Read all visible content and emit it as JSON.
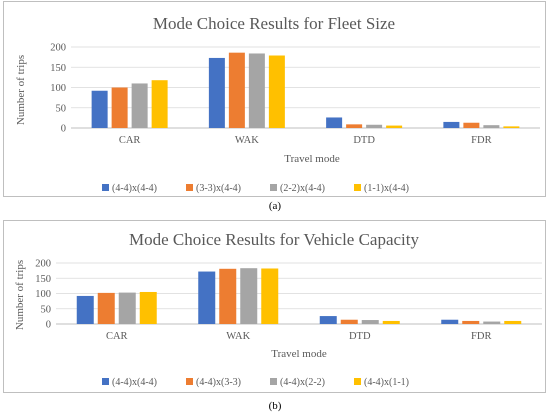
{
  "chart_data": [
    {
      "type": "bar",
      "title": "Mode Choice Results for Fleet Size",
      "xlabel": "Travel mode",
      "ylabel": "Number of trips",
      "categories": [
        "CAR",
        "WAK",
        "DTD",
        "FDR"
      ],
      "yticks": [
        "0",
        "50",
        "100",
        "150",
        "200"
      ],
      "ylim": [
        0,
        200
      ],
      "legend_position": "bottom",
      "series": [
        {
          "name": "(4-4)x(4-4)",
          "color": "#4472c4",
          "values": [
            92,
            173,
            26,
            15
          ]
        },
        {
          "name": "(3-3)x(4-4)",
          "color": "#ed7d31",
          "values": [
            100,
            186,
            9,
            13
          ]
        },
        {
          "name": "(2-2)x(4-4)",
          "color": "#a5a5a5",
          "values": [
            110,
            184,
            8,
            7
          ]
        },
        {
          "name": "(1-1)x(4-4)",
          "color": "#ffc000",
          "values": [
            118,
            179,
            6,
            4
          ]
        }
      ],
      "caption": "(a)"
    },
    {
      "type": "bar",
      "title": "Mode Choice Results for Vehicle Capacity",
      "xlabel": "Travel mode",
      "ylabel": "Number of trips",
      "categories": [
        "CAR",
        "WAK",
        "DTD",
        "FDR"
      ],
      "yticks": [
        "0",
        "50",
        "100",
        "150",
        "200"
      ],
      "ylim": [
        0,
        200
      ],
      "legend_position": "bottom",
      "series": [
        {
          "name": "(4-4)x(4-4)",
          "color": "#4472c4",
          "values": [
            92,
            172,
            26,
            14
          ]
        },
        {
          "name": "(4-4)x(3-3)",
          "color": "#ed7d31",
          "values": [
            102,
            181,
            14,
            10
          ]
        },
        {
          "name": "(4-4)x(2-2)",
          "color": "#a5a5a5",
          "values": [
            103,
            183,
            13,
            8
          ]
        },
        {
          "name": "(4-4)x(1-1)",
          "color": "#ffc000",
          "values": [
            105,
            182,
            10,
            10
          ]
        }
      ],
      "caption": "(b)"
    }
  ]
}
